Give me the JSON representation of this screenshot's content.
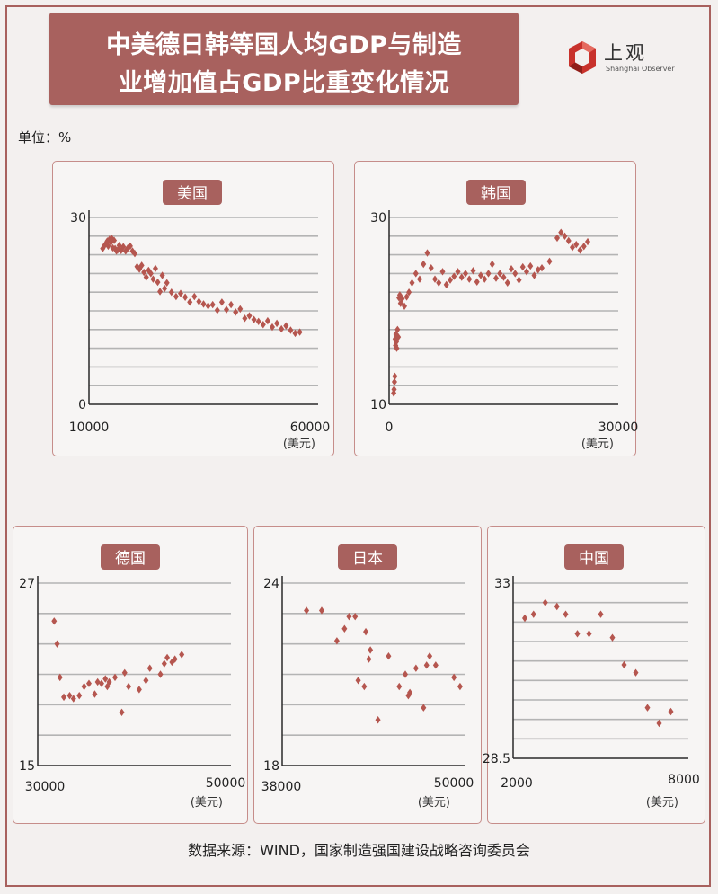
{
  "header": {
    "title_line1": "中美德日韩等国人均GDP与制造",
    "title_line2": "业增加值占GDP比重变化情况"
  },
  "logo": {
    "name": "上观",
    "subtitle": "Shanghai Observer",
    "icon": "shanghai-observer-logo-icon",
    "color": "#c8322c"
  },
  "unit_label": "单位：%",
  "source": "数据来源：WIND，国家制造强国建设战略咨询委员会",
  "colors": {
    "accent": "#a8615e",
    "marker": "#b5564f",
    "grid": "#b4b4b4",
    "axis": "#2a2a2a",
    "label_bg": "#a8615e"
  },
  "chart_data": [
    {
      "type": "scatter",
      "title": "美国",
      "xunit": "(美元)",
      "xlim": [
        10000,
        60000
      ],
      "ylim": [
        0,
        30
      ],
      "xticks": [
        "10000",
        "60000"
      ],
      "yticks": [
        "0",
        "30"
      ],
      "grid_lines": 10,
      "grid": true,
      "x": [
        13000,
        13500,
        14000,
        14200,
        14500,
        14800,
        15000,
        15200,
        15500,
        15700,
        16000,
        16300,
        16600,
        17000,
        17500,
        18000,
        18500,
        19000,
        19500,
        20000,
        20500,
        21000,
        21500,
        22000,
        22500,
        23000,
        23500,
        24000,
        24500,
        25000,
        25500,
        26000,
        26500,
        27000,
        28000,
        29000,
        30000,
        31000,
        32000,
        33000,
        34000,
        35000,
        36000,
        37000,
        38000,
        39000,
        40000,
        41000,
        42000,
        43000,
        44000,
        45000,
        46000,
        47000,
        48000,
        49000,
        50000,
        51000,
        52000,
        53000,
        54000,
        55000,
        56000
      ],
      "y": [
        25,
        25.6,
        26.2,
        25.4,
        26.5,
        26.0,
        26.6,
        25.1,
        26.3,
        25.0,
        24.6,
        24.8,
        25.5,
        24.7,
        25.3,
        24.6,
        25.1,
        25.4,
        24.6,
        24.2,
        22.1,
        21.7,
        22.3,
        21.2,
        20.4,
        21.5,
        21.0,
        20.1,
        21.8,
        19.6,
        18.1,
        20.7,
        18.6,
        19.5,
        18.0,
        17.3,
        17.8,
        17.2,
        16.4,
        17.3,
        16.5,
        16.1,
        15.8,
        16.0,
        15.1,
        16.4,
        15.2,
        16.0,
        14.8,
        15.3,
        13.8,
        14.2,
        13.6,
        13.3,
        12.8,
        13.4,
        12.4,
        13.0,
        12.1,
        12.6,
        11.9,
        11.4,
        11.6
      ]
    },
    {
      "type": "scatter",
      "title": "韩国",
      "xunit": "(美元)",
      "xlim": [
        0,
        30000
      ],
      "ylim": [
        10,
        30
      ],
      "xticks": [
        "0",
        "30000"
      ],
      "yticks": [
        "10",
        "30"
      ],
      "grid_lines": 10,
      "grid": true,
      "x": [
        600,
        650,
        700,
        750,
        800,
        850,
        900,
        950,
        1000,
        1100,
        1200,
        1300,
        1400,
        1500,
        1700,
        2000,
        2300,
        2600,
        3000,
        3500,
        4000,
        4500,
        5000,
        5500,
        6000,
        6500,
        7000,
        7500,
        8000,
        8500,
        9000,
        9500,
        10000,
        10500,
        11000,
        11500,
        12000,
        12500,
        13000,
        13500,
        14000,
        14500,
        15000,
        15500,
        16000,
        16500,
        17000,
        17500,
        18000,
        18500,
        19000,
        19500,
        20000,
        21000,
        22000,
        22500,
        23000,
        23500,
        24000,
        24500,
        25000,
        25500,
        26000
      ],
      "y": [
        11.2,
        11.6,
        12.4,
        13.0,
        17.0,
        16.3,
        17.5,
        16.7,
        16.0,
        18.0,
        17.2,
        21.4,
        21.7,
        20.8,
        21.3,
        20.5,
        21.5,
        22.0,
        23.0,
        24.0,
        23.4,
        25.0,
        26.2,
        24.6,
        23.4,
        23.0,
        24.2,
        22.8,
        23.3,
        23.7,
        24.2,
        23.6,
        24.0,
        23.4,
        24.3,
        23.1,
        23.8,
        23.4,
        24.0,
        25.0,
        23.5,
        24.0,
        23.6,
        23.0,
        24.5,
        24.0,
        23.3,
        24.7,
        24.2,
        24.8,
        23.8,
        24.4,
        24.6,
        25.3,
        27.8,
        28.4,
        28.0,
        27.5,
        26.8,
        27.1,
        26.5,
        26.9,
        27.4
      ]
    },
    {
      "type": "scatter",
      "title": "德国",
      "xunit": "(美元)",
      "xlim": [
        30000,
        50000
      ],
      "ylim": [
        15,
        27
      ],
      "xticks": [
        "30000",
        "50000"
      ],
      "yticks": [
        "15",
        "27"
      ],
      "grid_lines": 6,
      "grid": true,
      "x": [
        31700,
        32000,
        32300,
        32700,
        33300,
        33700,
        34300,
        34800,
        35300,
        35900,
        36200,
        36600,
        37000,
        37200,
        37400,
        38000,
        38700,
        39000,
        39400,
        40500,
        41200,
        41600,
        42700,
        43100,
        43400,
        43900,
        44200,
        44900
      ],
      "y": [
        24.5,
        23.0,
        20.8,
        19.5,
        19.6,
        19.4,
        19.6,
        20.2,
        20.4,
        19.7,
        20.5,
        20.4,
        20.7,
        20.2,
        20.5,
        20.8,
        18.5,
        21.1,
        20.2,
        20.0,
        20.6,
        21.4,
        21.0,
        21.7,
        22.1,
        21.8,
        22.0,
        22.3
      ]
    },
    {
      "type": "scatter",
      "title": "日本",
      "xunit": "(美元)",
      "xlim": [
        38000,
        50000
      ],
      "ylim": [
        18,
        24
      ],
      "xticks": [
        "38000",
        "50000"
      ],
      "yticks": [
        "18",
        "24"
      ],
      "grid_lines": 6,
      "grid": true,
      "x": [
        39600,
        40600,
        41600,
        42100,
        42400,
        42800,
        43000,
        43400,
        43500,
        43700,
        43800,
        44300,
        45000,
        45700,
        46100,
        46300,
        46400,
        46800,
        47300,
        47500,
        47700,
        48100,
        49300,
        49700
      ],
      "y": [
        23.1,
        23.1,
        22.1,
        22.5,
        22.9,
        22.9,
        20.8,
        20.6,
        22.4,
        21.5,
        21.8,
        19.5,
        21.6,
        20.6,
        21.0,
        20.3,
        20.4,
        21.2,
        19.9,
        21.3,
        21.6,
        21.3,
        20.9,
        20.6
      ]
    },
    {
      "type": "scatter",
      "title": "中国",
      "xunit": "(美元)",
      "xlim": [
        2000,
        8000
      ],
      "ylim": [
        28.5,
        33
      ],
      "xticks": [
        "2000",
        "8000"
      ],
      "yticks": [
        "28.5",
        "33"
      ],
      "grid_lines": 9,
      "grid": true,
      "x": [
        2400,
        2700,
        3100,
        3500,
        3800,
        4200,
        4600,
        5000,
        5400,
        5800,
        6200,
        6600,
        7000,
        7400
      ],
      "y": [
        32.1,
        32.2,
        32.5,
        32.4,
        32.2,
        31.7,
        31.7,
        32.2,
        31.6,
        30.9,
        30.7,
        29.8,
        29.4,
        29.7
      ]
    }
  ]
}
